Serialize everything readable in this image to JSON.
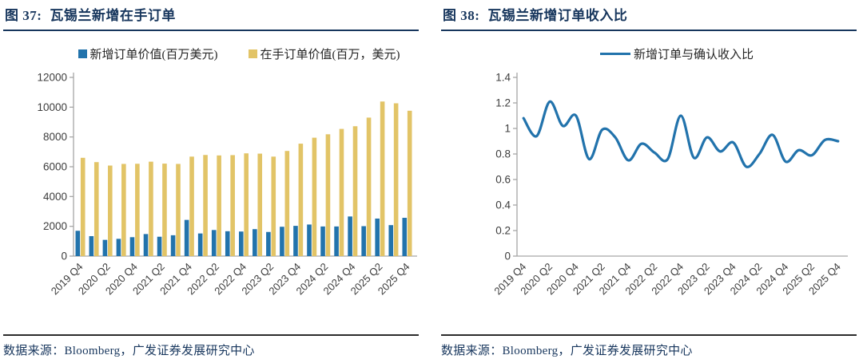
{
  "figures": [
    {
      "title_prefix": "图 37:",
      "title": "瓦锡兰新增在手订单",
      "source_note": "数据来源：Bloomberg，广发证券发展研究中心"
    },
    {
      "title_prefix": "图 38:",
      "title": "瓦锡兰新增订单收入比",
      "source_note": "数据来源：Bloomberg，广发证券发展研究中心"
    }
  ],
  "colors": {
    "title_navy": "#17365d",
    "bar_blue": "#2273ac",
    "bar_yellow": "#e2c467",
    "line_blue": "#2273ac",
    "axis_gray": "#a6a6a6",
    "tick_text": "#3d3d3d"
  },
  "chart_data": [
    {
      "type": "bar",
      "title": "瓦锡兰新增在手订单",
      "categories": [
        "2019 Q4",
        "2020 Q1",
        "2020 Q2",
        "2020 Q3",
        "2020 Q4",
        "2021 Q1",
        "2021 Q2",
        "2021 Q3",
        "2021 Q4",
        "2022 Q1",
        "2022 Q2",
        "2022 Q3",
        "2022 Q4",
        "2023 Q1",
        "2023 Q2",
        "2023 Q3",
        "2023 Q4",
        "2024 Q1",
        "2024 Q2",
        "2024 Q3",
        "2024 Q4",
        "2025 Q1",
        "2025 Q2",
        "2025 Q3",
        "2025 Q4"
      ],
      "x_tick_labels": [
        "2019 Q4",
        "2020 Q2",
        "2020 Q4",
        "2021 Q2",
        "2021 Q4",
        "2022 Q2",
        "2022 Q4",
        "2023 Q2",
        "2023 Q4",
        "2024 Q2",
        "2024 Q4",
        "2025 Q2",
        "2025 Q4"
      ],
      "x_label_every": 2,
      "series": [
        {
          "name": "新增订单价值(百万美元)",
          "color": "#2273ac",
          "values": [
            1700,
            1340,
            1090,
            1160,
            1270,
            1480,
            1300,
            1400,
            2430,
            1520,
            1750,
            1670,
            1650,
            1810,
            1620,
            1970,
            2030,
            2120,
            1990,
            1990,
            2660,
            2010,
            2520,
            2080,
            2570
          ]
        },
        {
          "name": "在手订单价值(百万，美元)",
          "color": "#e2c467",
          "values": [
            6600,
            6310,
            6080,
            6190,
            6200,
            6340,
            6210,
            6190,
            6680,
            6790,
            6760,
            6780,
            6900,
            6880,
            6680,
            7060,
            7550,
            7950,
            8180,
            8540,
            8720,
            9300,
            10380,
            10260,
            9760
          ]
        }
      ],
      "ylim": [
        0,
        12000
      ],
      "ytick_step": 2000,
      "grid": false,
      "legend_position": "top"
    },
    {
      "type": "line",
      "title": "瓦锡兰新增订单收入比",
      "categories": [
        "2019 Q4",
        "2020 Q1",
        "2020 Q2",
        "2020 Q3",
        "2020 Q4",
        "2021 Q1",
        "2021 Q2",
        "2021 Q3",
        "2021 Q4",
        "2022 Q1",
        "2022 Q2",
        "2022 Q3",
        "2022 Q4",
        "2023 Q1",
        "2023 Q2",
        "2023 Q3",
        "2023 Q4",
        "2024 Q1",
        "2024 Q2",
        "2024 Q3",
        "2024 Q4",
        "2025 Q1",
        "2025 Q2",
        "2025 Q3",
        "2025 Q4"
      ],
      "x_tick_labels": [
        "2019 Q4",
        "2020 Q2",
        "2020 Q4",
        "2021 Q2",
        "2021 Q4",
        "2022 Q2",
        "2022 Q4",
        "2023 Q2",
        "2023 Q4",
        "2024 Q2",
        "2024 Q4",
        "2025 Q2",
        "2025 Q4"
      ],
      "x_label_every": 2,
      "series": [
        {
          "name": "新增订单与确认收入比",
          "color": "#2273ac",
          "values": [
            1.08,
            0.94,
            1.21,
            1.02,
            1.1,
            0.76,
            0.99,
            0.93,
            0.75,
            0.88,
            0.81,
            0.76,
            1.1,
            0.77,
            0.93,
            0.82,
            0.89,
            0.7,
            0.8,
            0.95,
            0.74,
            0.83,
            0.79,
            0.91,
            0.9
          ]
        }
      ],
      "ylim": [
        0,
        1.4
      ],
      "ytick_step": 0.2,
      "grid": false,
      "legend_position": "top"
    }
  ]
}
